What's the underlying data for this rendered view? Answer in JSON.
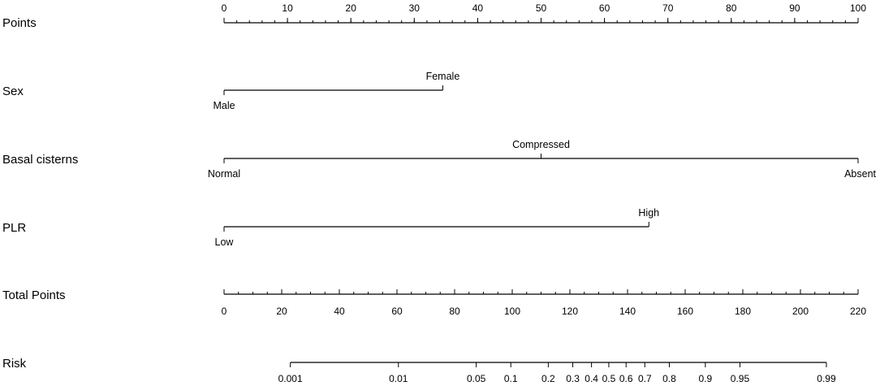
{
  "chart_data": {
    "type": "nomogram",
    "title": "",
    "points_axis": {
      "label": "Points",
      "range": [
        0,
        100
      ],
      "major_ticks": [
        0,
        10,
        20,
        30,
        40,
        50,
        60,
        70,
        80,
        90,
        100
      ],
      "minor_step": 2
    },
    "variables": [
      {
        "label": "Sex",
        "levels": [
          {
            "name": "Male",
            "points": 0,
            "label_position": "below"
          },
          {
            "name": "Female",
            "points": 34.5,
            "label_position": "above"
          }
        ]
      },
      {
        "label": "Basal cisterns",
        "levels": [
          {
            "name": "Normal",
            "points": 0,
            "label_position": "below"
          },
          {
            "name": "Compressed",
            "points": 50,
            "label_position": "above"
          },
          {
            "name": "Absent",
            "points": 100,
            "label_position": "below"
          }
        ]
      },
      {
        "label": "PLR",
        "levels": [
          {
            "name": "Low",
            "points": 0,
            "label_position": "below"
          },
          {
            "name": "High",
            "points": 67,
            "label_position": "above"
          }
        ]
      }
    ],
    "total_points_axis": {
      "label": "Total Points",
      "range": [
        0,
        220
      ],
      "major_ticks": [
        0,
        20,
        40,
        60,
        80,
        100,
        120,
        140,
        160,
        180,
        200,
        220
      ],
      "minor_step": 5
    },
    "risk_axis": {
      "label": "Risk",
      "ticks": [
        {
          "label": "0.001",
          "total_points": 23
        },
        {
          "label": "0.01",
          "total_points": 60.5
        },
        {
          "label": "0.05",
          "total_points": 87.5
        },
        {
          "label": "0.1",
          "total_points": 99.5
        },
        {
          "label": "0.2",
          "total_points": 112.5
        },
        {
          "label": "0.3",
          "total_points": 121
        },
        {
          "label": "0.4",
          "total_points": 127.5
        },
        {
          "label": "0.5",
          "total_points": 133.5
        },
        {
          "label": "0.6",
          "total_points": 139.5
        },
        {
          "label": "0.7",
          "total_points": 146
        },
        {
          "label": "0.8",
          "total_points": 154.5
        },
        {
          "label": "0.9",
          "total_points": 167
        },
        {
          "label": "0.95",
          "total_points": 179
        },
        {
          "label": "0.99",
          "total_points": 209
        }
      ]
    }
  }
}
